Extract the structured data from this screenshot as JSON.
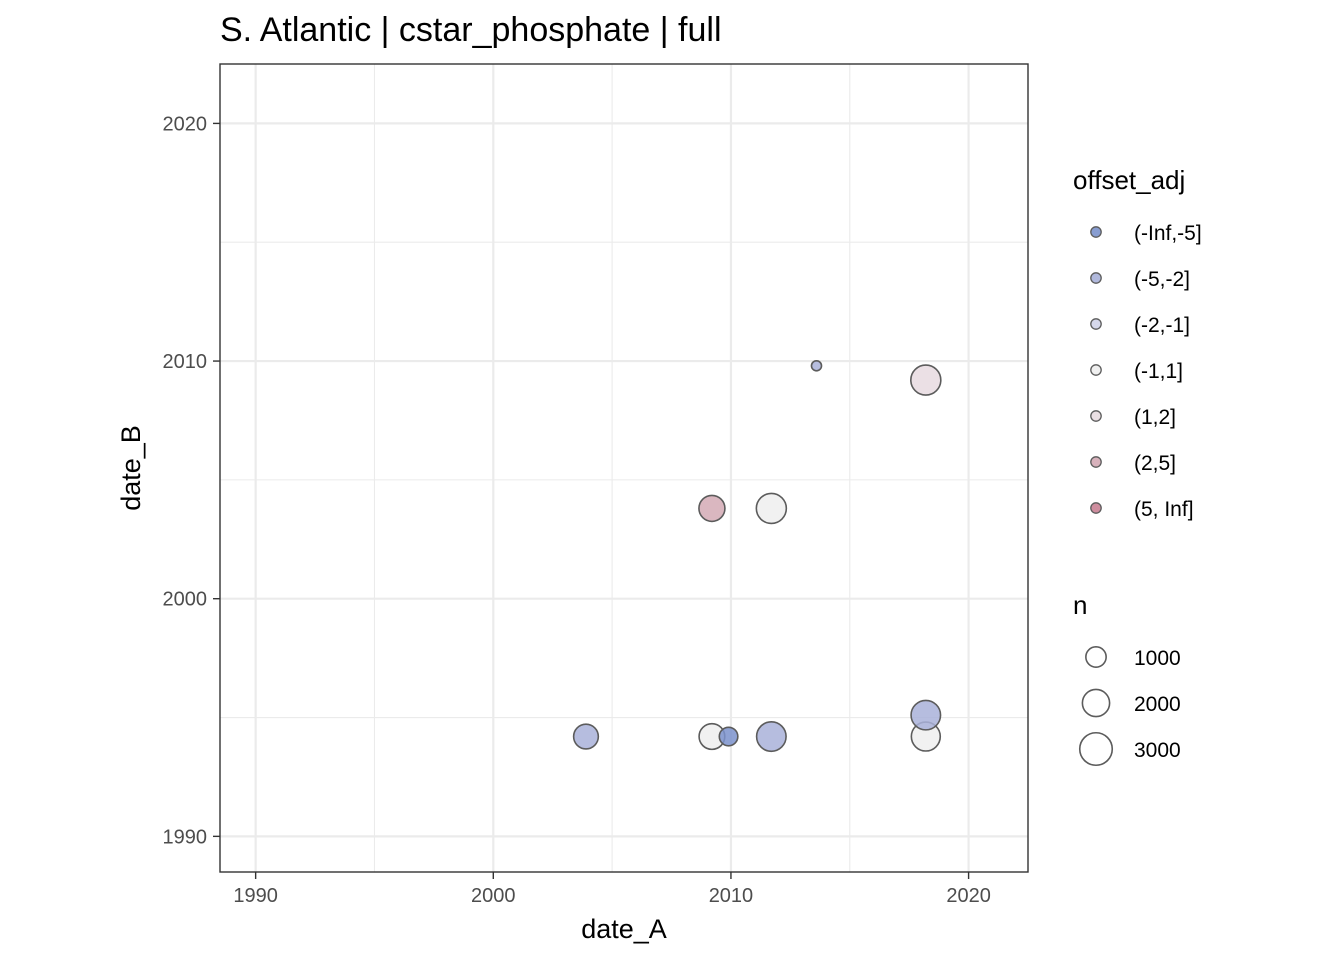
{
  "chart_data": {
    "type": "scatter",
    "title": "S. Atlantic | cstar_phosphate | full",
    "xlabel": "date_A",
    "ylabel": "date_B",
    "xlim": [
      1988.5,
      2022.5
    ],
    "ylim": [
      1988.5,
      2022.5
    ],
    "x_ticks": [
      "1990",
      "2000",
      "2010",
      "2020"
    ],
    "y_ticks": [
      "1990",
      "2000",
      "2010",
      "2020"
    ],
    "grid": true,
    "legend_position": "right",
    "colors": {
      "(-Inf,-5]": "#7b92cc",
      "(-5,-2]": "#a9b1d9",
      "(-2,-1]": "#d2d4e9",
      "(-1,1]": "#eeeeee",
      "(1,2]": "#e8dbe0",
      "(2,5]": "#d4aab5",
      "(5, Inf]": "#c98193"
    },
    "points": [
      {
        "x": 2003.9,
        "y": 1994.2,
        "n": 1600,
        "offset_adj": "(-5,-2]"
      },
      {
        "x": 2009.2,
        "y": 1994.2,
        "n": 1750,
        "offset_adj": "(-1,1]"
      },
      {
        "x": 2009.9,
        "y": 1994.2,
        "n": 800,
        "offset_adj": "(-Inf,-5]"
      },
      {
        "x": 2011.7,
        "y": 1994.2,
        "n": 2400,
        "offset_adj": "(-5,-2]"
      },
      {
        "x": 2018.2,
        "y": 1994.2,
        "n": 2300,
        "offset_adj": "(-1,1]"
      },
      {
        "x": 2018.2,
        "y": 1995.1,
        "n": 2400,
        "offset_adj": "(-5,-2]"
      },
      {
        "x": 2009.2,
        "y": 2003.8,
        "n": 1800,
        "offset_adj": "(2,5]"
      },
      {
        "x": 2011.7,
        "y": 2003.8,
        "n": 2500,
        "offset_adj": "(-1,1]"
      },
      {
        "x": 2013.6,
        "y": 2009.8,
        "n": 150,
        "offset_adj": "(-5,-2]"
      },
      {
        "x": 2018.2,
        "y": 2009.2,
        "n": 2500,
        "offset_adj": "(1,2]"
      }
    ],
    "legend_color": {
      "title": "offset_adj",
      "entries": [
        "(-Inf,-5]",
        "(-5,-2]",
        "(-2,-1]",
        "(-1,1]",
        "(1,2]",
        "(2,5]",
        "(5, Inf]"
      ]
    },
    "legend_size": {
      "title": "n",
      "entries": [
        {
          "label": "1000",
          "value": 1000
        },
        {
          "label": "2000",
          "value": 2000
        },
        {
          "label": "3000",
          "value": 3000
        }
      ]
    }
  }
}
